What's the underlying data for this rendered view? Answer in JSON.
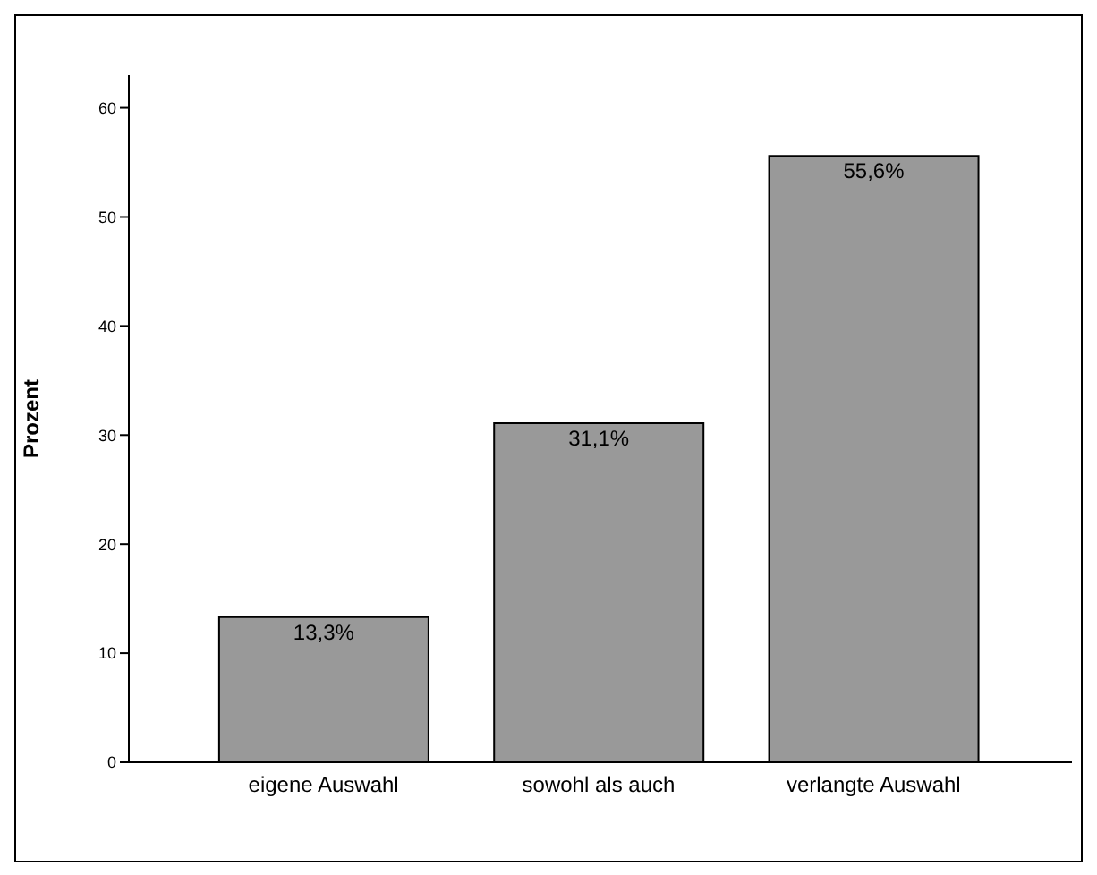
{
  "chart_data": {
    "type": "bar",
    "ylabel": "Prozent",
    "categories": [
      "eigene Auswahl",
      "sowohl als auch",
      "verlangte Auswahl"
    ],
    "values": [
      13.3,
      31.1,
      55.6
    ],
    "color": "#999999",
    "value_labels": [
      "13,3%",
      "31,1%",
      "55,6%"
    ],
    "ylim": [
      0,
      63
    ],
    "yticks": [
      0,
      10,
      20,
      30,
      40,
      50,
      60
    ],
    "grid": false,
    "legend": false
  }
}
